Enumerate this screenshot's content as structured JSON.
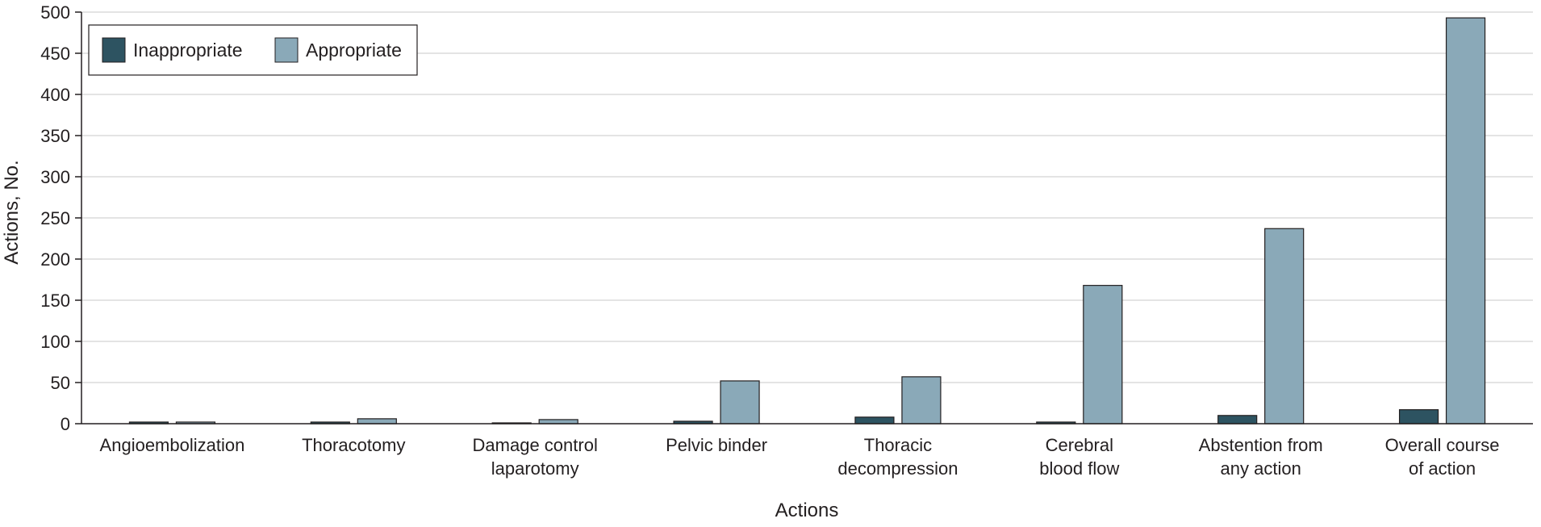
{
  "chart_data": {
    "type": "bar",
    "title": "",
    "xlabel": "Actions",
    "ylabel": "Actions, No.",
    "ylim": [
      0,
      500
    ],
    "yticks": [
      0,
      50,
      100,
      150,
      200,
      250,
      300,
      350,
      400,
      450,
      500
    ],
    "grid": true,
    "legend_position": "top-left",
    "categories": [
      [
        "Angioembolization"
      ],
      [
        "Thoracotomy"
      ],
      [
        "Damage control",
        "laparotomy"
      ],
      [
        "Pelvic binder"
      ],
      [
        "Thoracic",
        "decompression"
      ],
      [
        "Cerebral",
        "blood flow"
      ],
      [
        "Abstention from",
        "any action"
      ],
      [
        "Overall course",
        "of action"
      ]
    ],
    "series": [
      {
        "name": "Inappropriate",
        "color": "#2d5361",
        "values": [
          2,
          2,
          1,
          3,
          8,
          2,
          10,
          17
        ]
      },
      {
        "name": "Appropriate",
        "color": "#8aa9b8",
        "values": [
          2,
          6,
          5,
          52,
          57,
          168,
          237,
          493
        ]
      }
    ]
  }
}
